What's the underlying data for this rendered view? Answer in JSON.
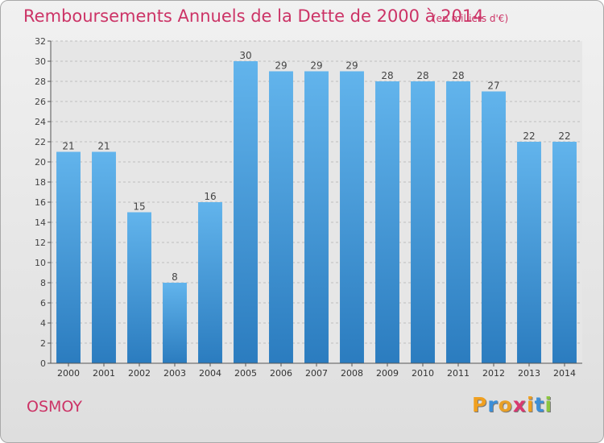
{
  "header": {
    "title": "Remboursements Annuels de la Dette de 2000 à 2014",
    "unit": "(en milliers d'€)"
  },
  "footer": {
    "commune": "OSMOY",
    "logo": [
      "P",
      "r",
      "o",
      "x",
      "i",
      "t",
      "i"
    ]
  },
  "colors": {
    "title": "#cc3366",
    "bar_light": "#5eb0ea",
    "bar_dark": "#2d7fc1",
    "logo": [
      "#f0a020",
      "#3c8fd8",
      "#e8a028",
      "#d83870",
      "#f0a020",
      "#3c8fd8",
      "#8cc63f"
    ]
  },
  "chart_data": {
    "type": "bar",
    "title": "Remboursements Annuels de la Dette de 2000 à 2014",
    "subtitle": "(en milliers d'€)",
    "categories": [
      "2000",
      "2001",
      "2002",
      "2003",
      "2004",
      "2005",
      "2006",
      "2007",
      "2008",
      "2009",
      "2010",
      "2011",
      "2012",
      "2013",
      "2014"
    ],
    "values": [
      21,
      21,
      15,
      8,
      16,
      30,
      29,
      29,
      29,
      28,
      28,
      28,
      27,
      22,
      22
    ],
    "ylim": [
      0,
      32
    ],
    "yticks": [
      0,
      2,
      4,
      6,
      8,
      10,
      12,
      14,
      16,
      18,
      20,
      22,
      24,
      26,
      28,
      30,
      32
    ],
    "grid": true,
    "legend": "none"
  }
}
